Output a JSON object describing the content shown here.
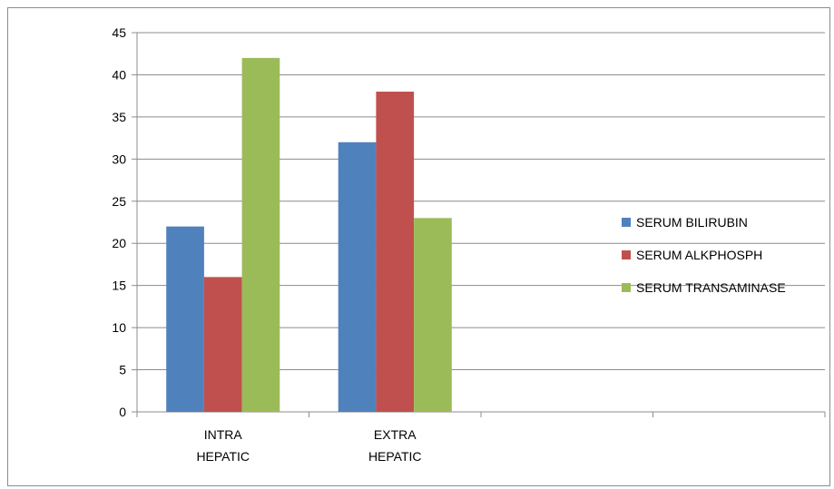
{
  "chart_data": {
    "type": "bar",
    "title": "",
    "xlabel": "",
    "ylabel": "",
    "categories": [
      [
        "INTRA",
        "HEPATIC"
      ],
      [
        "EXTRA",
        "HEPATIC"
      ],
      [
        "",
        ""
      ],
      [
        "",
        ""
      ]
    ],
    "ylim": [
      0,
      45
    ],
    "yticks": [
      0,
      5,
      10,
      15,
      20,
      25,
      30,
      35,
      40,
      45
    ],
    "grid": true,
    "legend_position": "right",
    "series": [
      {
        "name": "SERUM BILIRUBIN",
        "color": "#4f81bd",
        "values": [
          22,
          32,
          null,
          null
        ]
      },
      {
        "name": "SERUM ALKPHOSPH",
        "color": "#c0504d",
        "values": [
          16,
          38,
          null,
          null
        ]
      },
      {
        "name": "SERUM TRANSAMINASE",
        "color": "#9bbb59",
        "values": [
          42,
          23,
          null,
          null
        ]
      }
    ]
  }
}
